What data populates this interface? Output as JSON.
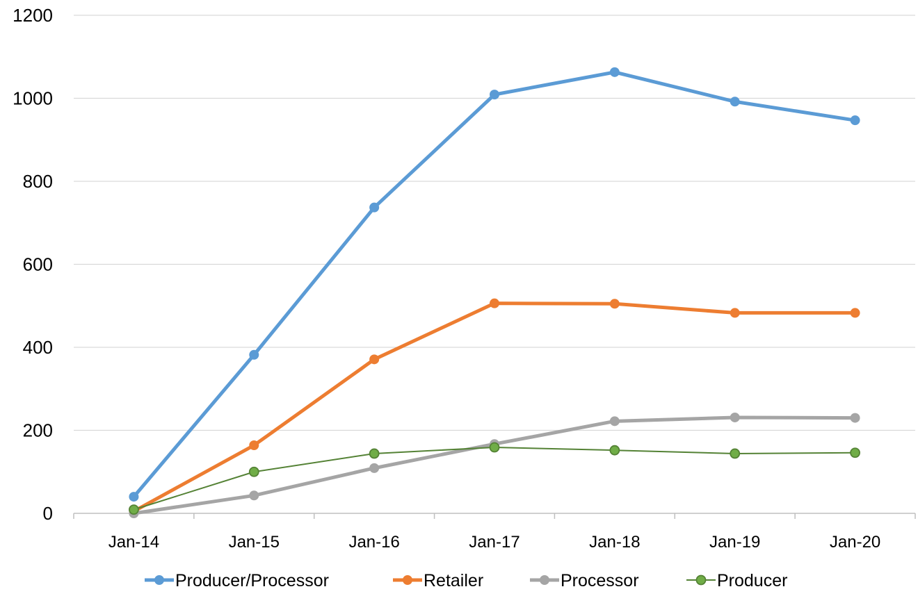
{
  "chart_data": {
    "type": "line",
    "title": "",
    "xlabel": "",
    "ylabel": "",
    "categories": [
      "Jan-14",
      "Jan-15",
      "Jan-16",
      "Jan-17",
      "Jan-18",
      "Jan-19",
      "Jan-20"
    ],
    "ylim": [
      0,
      1200
    ],
    "yticks": [
      0,
      200,
      400,
      600,
      800,
      1000,
      1200
    ],
    "grid": true,
    "legend_position": "bottom",
    "series": [
      {
        "name": "Producer/Processor",
        "color": "#5B9BD5",
        "values": [
          40,
          382,
          737,
          1009,
          1063,
          992,
          947
        ]
      },
      {
        "name": "Retailer",
        "color": "#ED7D31",
        "values": [
          5,
          164,
          371,
          506,
          505,
          483,
          483
        ]
      },
      {
        "name": "Processor",
        "color": "#A5A5A5",
        "values": [
          0,
          43,
          109,
          167,
          222,
          231,
          230
        ]
      },
      {
        "name": "Producer",
        "color": "#548235",
        "marker_fill": "#70AD47",
        "values": [
          9,
          100,
          144,
          159,
          152,
          144,
          146
        ]
      }
    ]
  }
}
